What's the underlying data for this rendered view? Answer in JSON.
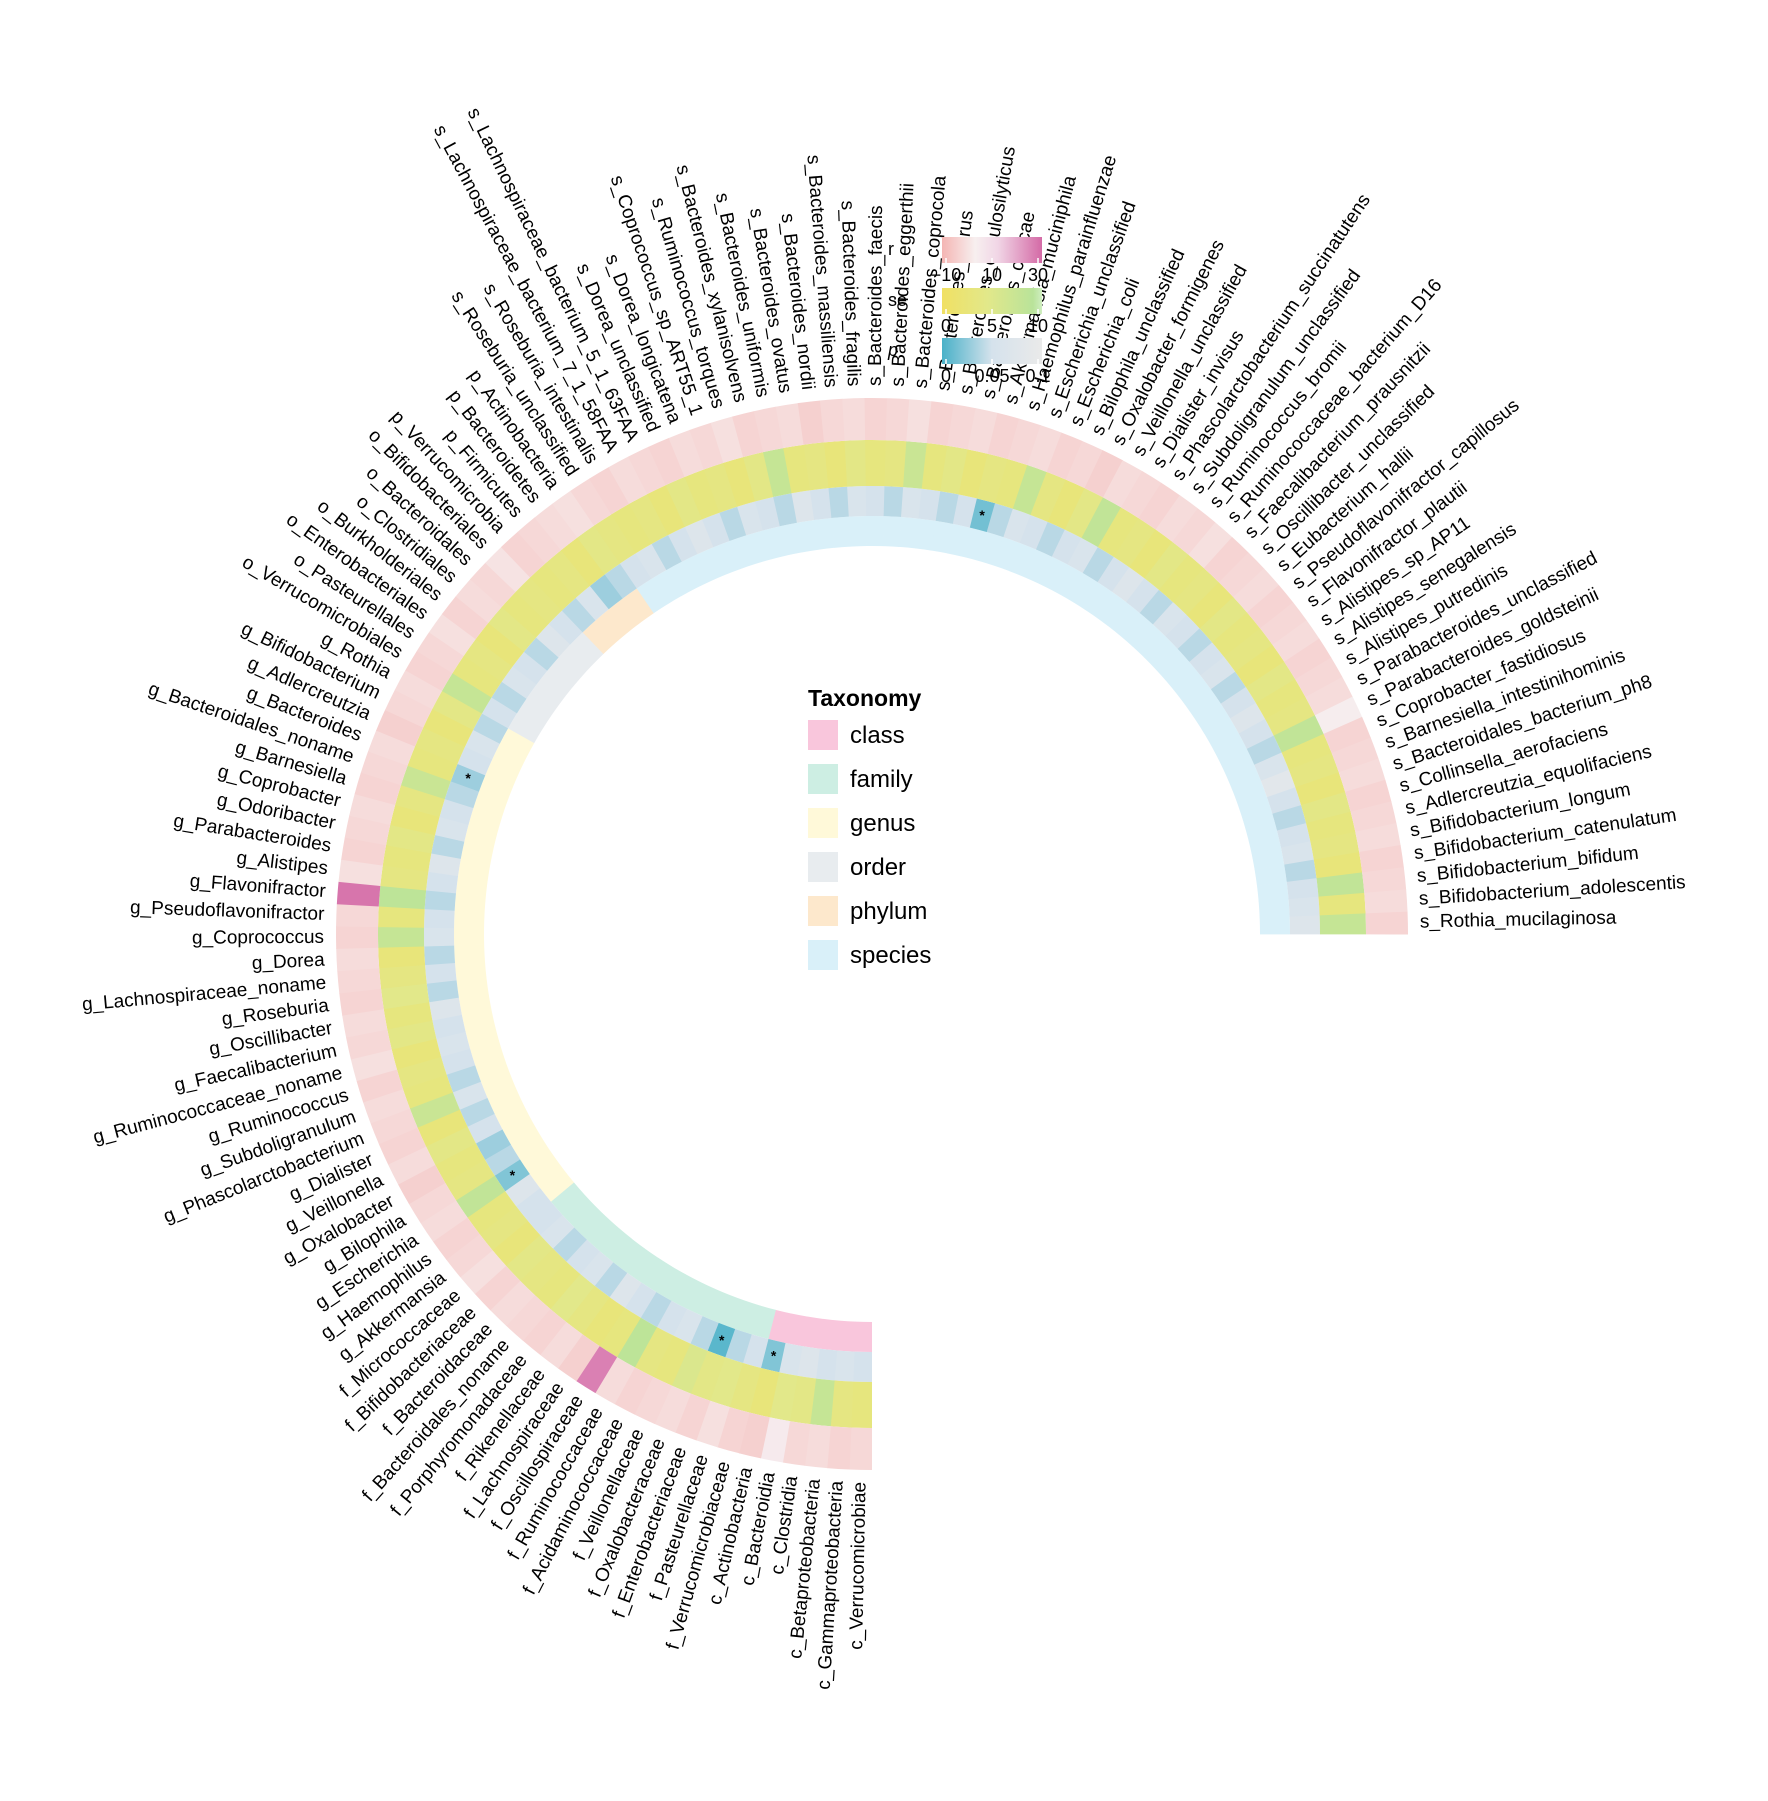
{
  "chart_data": {
    "type": "heatmap",
    "layout": "circular",
    "rings": [
      "r",
      "se",
      "p",
      "taxonomy"
    ],
    "legend": {
      "title": "Taxonomy",
      "levels": [
        "class",
        "family",
        "genus",
        "order",
        "phylum",
        "species"
      ],
      "colors": {
        "class": "#f9c6dc",
        "family": "#cdeee3",
        "genus": "#fff9d9",
        "order": "#e8ecef",
        "phylum": "#fde8cc",
        "species": "#d9f0f9"
      }
    },
    "color_scales": {
      "r": {
        "label": "r",
        "ticks": [
          "−10",
          "10",
          "30"
        ],
        "range": [
          -15,
          30
        ],
        "stops": [
          [
            -15,
            "#f4b5b3"
          ],
          [
            0,
            "#f7efef"
          ],
          [
            10,
            "#f1d6e6"
          ],
          [
            30,
            "#d46aa6"
          ]
        ]
      },
      "se": {
        "label": "se",
        "ticks": [
          "0",
          "5",
          "10"
        ],
        "range": [
          0,
          11
        ],
        "stops": [
          [
            0,
            "#f0e063"
          ],
          [
            5,
            "#e2e88a"
          ],
          [
            10,
            "#b9e39a"
          ],
          [
            11,
            "#cfeec0"
          ]
        ]
      },
      "p": {
        "label": "p",
        "ticks": [
          "0",
          "0.05",
          "0.1"
        ],
        "range": [
          0,
          0.1
        ],
        "stops": [
          [
            0,
            "#49b1c8"
          ],
          [
            0.05,
            "#d5e2ec"
          ],
          [
            0.1,
            "#eaeaea"
          ]
        ]
      }
    },
    "significance_marker": "*",
    "series": [
      {
        "name": "c_Verrucomicrobiae",
        "level": "class",
        "r": -6,
        "se": 3.5,
        "p": 0.05
      },
      {
        "name": "c_Gammaproteobacteria",
        "level": "class",
        "r": -7,
        "se": 4.0,
        "p": 0.06
      },
      {
        "name": "c_Betaproteobacteria",
        "level": "class",
        "r": -5,
        "se": 8.5,
        "p": 0.05
      },
      {
        "name": "c_Clostridia",
        "level": "class",
        "r": -6,
        "se": 4.5,
        "p": 0.07
      },
      {
        "name": "c_Bacteroidia",
        "level": "class",
        "r": 2,
        "se": 5.0,
        "p": 0.06
      },
      {
        "name": "c_Actinobacteria",
        "level": "class",
        "r": -8,
        "se": 3.0,
        "p": 0.02,
        "sig": true
      },
      {
        "name": "f_Verrucomicrobiaceae",
        "level": "family",
        "r": -7,
        "se": 4.0,
        "p": 0.05
      },
      {
        "name": "f_Pasteurellaceae",
        "level": "family",
        "r": -4,
        "se": 5.0,
        "p": 0.04
      },
      {
        "name": "f_Enterobacteriaceae",
        "level": "family",
        "r": -7,
        "se": 4.5,
        "p": 0.006,
        "sig": true
      },
      {
        "name": "f_Oxalobacteraceae",
        "level": "family",
        "r": -5,
        "se": 6.0,
        "p": 0.04
      },
      {
        "name": "f_Veillonellaceae",
        "level": "family",
        "r": -6,
        "se": 3.5,
        "p": 0.06
      },
      {
        "name": "f_Acidaminococcaceae",
        "level": "family",
        "r": -7,
        "se": 4.0,
        "p": 0.05
      },
      {
        "name": "f_Ruminococcaceae",
        "level": "family",
        "r": -5,
        "se": 9.5,
        "p": 0.04
      },
      {
        "name": "f_Oscillospiraceae",
        "level": "family",
        "r": 26,
        "se": 3.5,
        "p": 0.05
      },
      {
        "name": "f_Lachnospiraceae",
        "level": "family",
        "r": -8,
        "se": 3.0,
        "p": 0.07
      },
      {
        "name": "f_Rikenellaceae",
        "level": "family",
        "r": -5,
        "se": 4.0,
        "p": 0.04
      },
      {
        "name": "f_Porphyromonadaceae",
        "level": "family",
        "r": -7,
        "se": 5.0,
        "p": 0.06
      },
      {
        "name": "f_Bacteroidales_noname",
        "level": "family",
        "r": -6,
        "se": 3.5,
        "p": 0.05
      },
      {
        "name": "f_Bacteroidaceae",
        "level": "family",
        "r": -5,
        "se": 4.0,
        "p": 0.04
      },
      {
        "name": "f_Bifidobacteriaceae",
        "level": "family",
        "r": -7,
        "se": 4.5,
        "p": 0.06
      },
      {
        "name": "f_Micrococcaceae",
        "level": "family",
        "r": -4,
        "se": 3.0,
        "p": 0.05
      },
      {
        "name": "g_Akkermansia",
        "level": "genus",
        "r": -6,
        "se": 4.0,
        "p": 0.05
      },
      {
        "name": "g_Haemophilus",
        "level": "genus",
        "r": -7,
        "se": 3.5,
        "p": 0.07
      },
      {
        "name": "g_Escherichia",
        "level": "genus",
        "r": -5,
        "se": 9.0,
        "p": 0.02,
        "sig": true
      },
      {
        "name": "g_Bilophila",
        "level": "genus",
        "r": -6,
        "se": 4.0,
        "p": 0.04
      },
      {
        "name": "g_Oxalobacter",
        "level": "genus",
        "r": -8,
        "se": 3.5,
        "p": 0.03
      },
      {
        "name": "g_Veillonella",
        "level": "genus",
        "r": -5,
        "se": 4.5,
        "p": 0.05
      },
      {
        "name": "g_Dialister",
        "level": "genus",
        "r": -7,
        "se": 3.0,
        "p": 0.04
      },
      {
        "name": "g_Phascolarctobacterium",
        "level": "genus",
        "r": -6,
        "se": 8.0,
        "p": 0.06
      },
      {
        "name": "g_Subdoligranulum",
        "level": "genus",
        "r": -5,
        "se": 3.5,
        "p": 0.04
      },
      {
        "name": "g_Ruminococcus",
        "level": "genus",
        "r": -7,
        "se": 4.0,
        "p": 0.05
      },
      {
        "name": "g_Ruminococcaceae_noname",
        "level": "genus",
        "r": -4,
        "se": 3.0,
        "p": 0.06
      },
      {
        "name": "g_Faecalibacterium",
        "level": "genus",
        "r": -6,
        "se": 4.5,
        "p": 0.05
      },
      {
        "name": "g_Oscillibacter",
        "level": "genus",
        "r": -5,
        "se": 3.5,
        "p": 0.07
      },
      {
        "name": "g_Roseburia",
        "level": "genus",
        "r": -7,
        "se": 5.0,
        "p": 0.04
      },
      {
        "name": "g_Lachnospiraceae_noname",
        "level": "genus",
        "r": -6,
        "se": 4.0,
        "p": 0.05
      },
      {
        "name": "g_Dorea",
        "level": "genus",
        "r": -5,
        "se": 3.0,
        "p": 0.04
      },
      {
        "name": "g_Coprococcus",
        "level": "genus",
        "r": -7,
        "se": 8.5,
        "p": 0.06
      },
      {
        "name": "g_Pseudoflavonifractor",
        "level": "genus",
        "r": -6,
        "se": 3.5,
        "p": 0.05
      },
      {
        "name": "g_Flavonifractor",
        "level": "genus",
        "r": 28,
        "se": 9.5,
        "p": 0.04
      },
      {
        "name": "g_Alistipes",
        "level": "genus",
        "r": -4,
        "se": 4.0,
        "p": 0.05
      },
      {
        "name": "g_Parabacteroides",
        "level": "genus",
        "r": -7,
        "se": 3.5,
        "p": 0.07
      },
      {
        "name": "g_Odoribacter",
        "level": "genus",
        "r": -6,
        "se": 4.5,
        "p": 0.04
      },
      {
        "name": "g_Coprobacter",
        "level": "genus",
        "r": -5,
        "se": 3.0,
        "p": 0.06
      },
      {
        "name": "g_Barnesiella",
        "level": "genus",
        "r": -7,
        "se": 4.0,
        "p": 0.05
      },
      {
        "name": "g_Bacteroidales_noname",
        "level": "genus",
        "r": -6,
        "se": 8.0,
        "p": 0.04
      },
      {
        "name": "g_Bacteroides",
        "level": "genus",
        "r": -5,
        "se": 3.5,
        "p": 0.03,
        "sig": true
      },
      {
        "name": "g_Adlercreutzia",
        "level": "genus",
        "r": -8,
        "se": 4.0,
        "p": 0.05
      },
      {
        "name": "g_Bifidobacterium",
        "level": "genus",
        "r": -6,
        "se": 3.0,
        "p": 0.06
      },
      {
        "name": "g_Rothia",
        "level": "genus",
        "r": -5,
        "se": 4.5,
        "p": 0.04
      },
      {
        "name": "o_Verrucomicrobiales",
        "level": "order",
        "r": -7,
        "se": 8.5,
        "p": 0.05
      },
      {
        "name": "o_Pasteurellales",
        "level": "order",
        "r": -6,
        "se": 3.5,
        "p": 0.04
      },
      {
        "name": "o_Enterobacteriales",
        "level": "order",
        "r": -4,
        "se": 4.0,
        "p": 0.06
      },
      {
        "name": "o_Burkholderiales",
        "level": "order",
        "r": -7,
        "se": 3.0,
        "p": 0.05
      },
      {
        "name": "o_Clostridiales",
        "level": "order",
        "r": -5,
        "se": 4.5,
        "p": 0.04
      },
      {
        "name": "o_Bacteroidales",
        "level": "order",
        "r": -6,
        "se": 3.5,
        "p": 0.07
      },
      {
        "name": "o_Bifidobacteriales",
        "level": "order",
        "r": -3,
        "se": 4.0,
        "p": 0.05
      },
      {
        "name": "p_Verrucomicrobia",
        "level": "phylum",
        "r": -7,
        "se": 3.5,
        "p": 0.04
      },
      {
        "name": "p_Firmicutes",
        "level": "phylum",
        "r": -6,
        "se": 4.0,
        "p": 0.06
      },
      {
        "name": "p_Bacteroidetes",
        "level": "phylum",
        "r": -5,
        "se": 3.0,
        "p": 0.03
      },
      {
        "name": "p_Actinobacteria",
        "level": "phylum",
        "r": -4,
        "se": 4.5,
        "p": 0.04
      },
      {
        "name": "s_Roseburia_unclassified",
        "level": "species",
        "r": -6,
        "se": 4.0,
        "p": 0.05
      },
      {
        "name": "s_Roseburia_intestinalis",
        "level": "species",
        "r": -7,
        "se": 3.5,
        "p": 0.06
      },
      {
        "name": "s_Lachnospiraceae_bacterium_7_1_58FAA",
        "level": "species",
        "r": -5,
        "se": 4.0,
        "p": 0.04
      },
      {
        "name": "s_Lachnospiraceae_bacterium_5_1_63FAA",
        "level": "species",
        "r": -6,
        "se": 3.0,
        "p": 0.05
      },
      {
        "name": "s_Dorea_unclassified",
        "level": "species",
        "r": -7,
        "se": 4.5,
        "p": 0.07
      },
      {
        "name": "s_Dorea_longicatena",
        "level": "species",
        "r": -5,
        "se": 3.5,
        "p": 0.05
      },
      {
        "name": "s_Coprococcus_sp_ART55_1",
        "level": "species",
        "r": -6,
        "se": 4.0,
        "p": 0.04
      },
      {
        "name": "s_Ruminococcus_torques",
        "level": "species",
        "r": -4,
        "se": 3.0,
        "p": 0.06
      },
      {
        "name": "s_Bacteroides_xylanisolvens",
        "level": "species",
        "r": -7,
        "se": 4.5,
        "p": 0.05
      },
      {
        "name": "s_Bacteroides_uniformis",
        "level": "species",
        "r": -6,
        "se": 8.5,
        "p": 0.04
      },
      {
        "name": "s_Bacteroides_ovatus",
        "level": "species",
        "r": -5,
        "se": 3.5,
        "p": 0.07
      },
      {
        "name": "s_Bacteroides_nordii",
        "level": "species",
        "r": -8,
        "se": 4.0,
        "p": 0.05
      },
      {
        "name": "s_Bacteroides_massiliensis",
        "level": "species",
        "r": -6,
        "se": 3.0,
        "p": 0.04
      },
      {
        "name": "s_Bacteroides_fragilis",
        "level": "species",
        "r": -5,
        "se": 4.5,
        "p": 0.06
      },
      {
        "name": "s_Bacteroides_faecis",
        "level": "species",
        "r": -7,
        "se": 3.5,
        "p": 0.05
      },
      {
        "name": "s_Bacteroides_eggerthii",
        "level": "species",
        "r": -6,
        "se": 4.0,
        "p": 0.04
      },
      {
        "name": "s_Bacteroides_coprocola",
        "level": "species",
        "r": -4,
        "se": 8.0,
        "p": 0.06
      },
      {
        "name": "s_Bacteroides_clarus",
        "level": "species",
        "r": -7,
        "se": 3.5,
        "p": 0.05
      },
      {
        "name": "s_Bacteroides_cellulosilyticus",
        "level": "species",
        "r": -6,
        "se": 4.5,
        "p": 0.04
      },
      {
        "name": "s_Bacteroides_caccae",
        "level": "species",
        "r": -5,
        "se": 3.0,
        "p": 0.05
      },
      {
        "name": "s_Akkermansia_muciniphila",
        "level": "species",
        "r": -7,
        "se": 4.0,
        "p": 0.015,
        "sig": true
      },
      {
        "name": "s_Haemophilus_parainfluenzae",
        "level": "species",
        "r": -6,
        "se": 3.5,
        "p": 0.04
      },
      {
        "name": "s_Escherichia_unclassified",
        "level": "species",
        "r": -5,
        "se": 8.5,
        "p": 0.06
      },
      {
        "name": "s_Escherichia_coli",
        "level": "species",
        "r": -7,
        "se": 4.0,
        "p": 0.05
      },
      {
        "name": "s_Bilophila_unclassified",
        "level": "species",
        "r": -6,
        "se": 3.0,
        "p": 0.04
      },
      {
        "name": "s_Oxalobacter_formigenes",
        "level": "species",
        "r": -8,
        "se": 4.5,
        "p": 0.05
      },
      {
        "name": "s_Veillonella_unclassified",
        "level": "species",
        "r": -5,
        "se": 9.0,
        "p": 0.06
      },
      {
        "name": "s_Dialister_invisus",
        "level": "species",
        "r": -6,
        "se": 3.5,
        "p": 0.04
      },
      {
        "name": "s_Phascolarctobacterium_succinatutens",
        "level": "species",
        "r": -7,
        "se": 4.0,
        "p": 0.05
      },
      {
        "name": "s_Subdoligranulum_unclassified",
        "level": "species",
        "r": -5,
        "se": 3.0,
        "p": 0.07
      },
      {
        "name": "s_Ruminococcus_bromii",
        "level": "species",
        "r": -6,
        "se": 4.5,
        "p": 0.05
      },
      {
        "name": "s_Ruminococcaceae_bacterium_D16",
        "level": "species",
        "r": -4,
        "se": 3.5,
        "p": 0.04
      },
      {
        "name": "s_Faecalibacterium_prausnitzii",
        "level": "species",
        "r": -7,
        "se": 4.0,
        "p": 0.06
      },
      {
        "name": "s_Oscillibacter_unclassified",
        "level": "species",
        "r": -6,
        "se": 3.0,
        "p": 0.05
      },
      {
        "name": "s_Eubacterium_hallii",
        "level": "species",
        "r": -5,
        "se": 4.5,
        "p": 0.04
      },
      {
        "name": "s_Pseudoflavonifractor_capillosus",
        "level": "species",
        "r": -7,
        "se": 3.5,
        "p": 0.05
      },
      {
        "name": "s_Flavonifractor_plautii",
        "level": "species",
        "r": -6,
        "se": 4.0,
        "p": 0.06
      },
      {
        "name": "s_Alistipes_sp_AP11",
        "level": "species",
        "r": -5,
        "se": 3.0,
        "p": 0.04
      },
      {
        "name": "s_Alistipes_senegalensis",
        "level": "species",
        "r": -7,
        "se": 4.5,
        "p": 0.05
      },
      {
        "name": "s_Alistipes_putredinis",
        "level": "species",
        "r": -6,
        "se": 3.5,
        "p": 0.07
      },
      {
        "name": "s_Parabacteroides_unclassified",
        "level": "species",
        "r": -5,
        "se": 4.0,
        "p": 0.05
      },
      {
        "name": "s_Parabacteroides_goldsteinii",
        "level": "species",
        "r": 1,
        "se": 9.0,
        "p": 0.04
      },
      {
        "name": "s_Coprobacter_fastidiosus",
        "level": "species",
        "r": -7,
        "se": 3.5,
        "p": 0.06
      },
      {
        "name": "s_Barnesiella_intestinihominis",
        "level": "species",
        "r": -6,
        "se": 4.0,
        "p": 0.08
      },
      {
        "name": "s_Bacteroidales_bacterium_ph8",
        "level": "species",
        "r": -5,
        "se": 3.0,
        "p": 0.05
      },
      {
        "name": "s_Collinsella_aerofaciens",
        "level": "species",
        "r": -7,
        "se": 4.5,
        "p": 0.04
      },
      {
        "name": "s_Adlercreutzia_equolifaciens",
        "level": "species",
        "r": -6,
        "se": 3.5,
        "p": 0.05
      },
      {
        "name": "s_Bifidobacterium_longum",
        "level": "species",
        "r": -5,
        "se": 4.0,
        "p": 0.06
      },
      {
        "name": "s_Bifidobacterium_catenulatum",
        "level": "species",
        "r": -7,
        "se": 3.0,
        "p": 0.04
      },
      {
        "name": "s_Bifidobacterium_bifidum",
        "level": "species",
        "r": -6,
        "se": 9.0,
        "p": 0.05
      },
      {
        "name": "s_Bifidobacterium_adolescentis",
        "level": "species",
        "r": -5,
        "se": 3.5,
        "p": 0.06
      },
      {
        "name": "s_Rothia_mucilaginosa",
        "level": "species",
        "r": -7,
        "se": 8.5,
        "p": 0.07
      }
    ]
  }
}
